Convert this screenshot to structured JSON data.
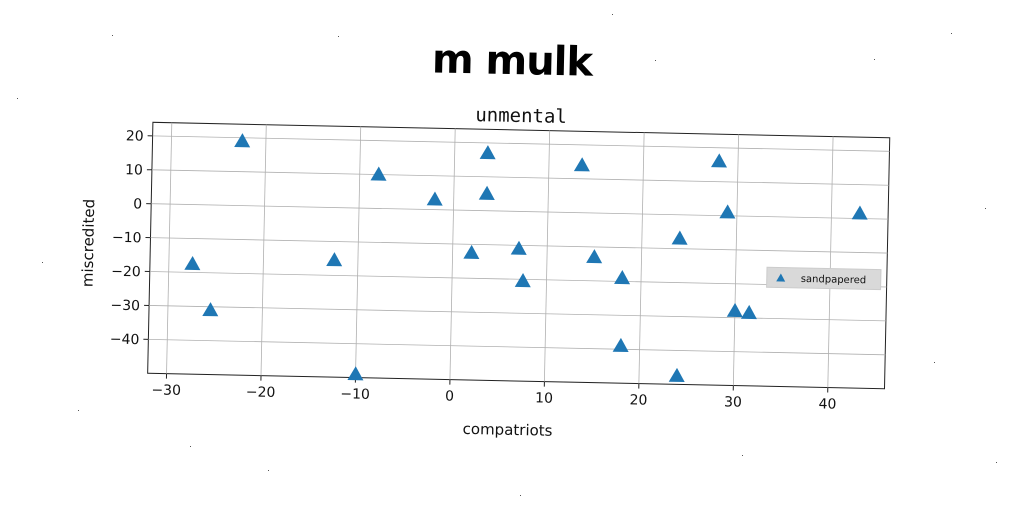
{
  "suptitle": "m mulk",
  "chart_data": {
    "type": "scatter",
    "title": "unmental",
    "xlabel": "compatriots",
    "ylabel": "miscredited",
    "xlim": [
      -32,
      46
    ],
    "ylim": [
      -50,
      24
    ],
    "xticks": [
      -30,
      -20,
      -10,
      0,
      10,
      20,
      30,
      40
    ],
    "xtick_labels": [
      "−30",
      "−20",
      "−10",
      "0",
      "10",
      "20",
      "30",
      "40"
    ],
    "yticks": [
      20,
      10,
      0,
      -10,
      -20,
      -30,
      -40
    ],
    "ytick_labels": [
      "20",
      "10",
      "0",
      "−10",
      "−20",
      "−30",
      "−40"
    ],
    "grid": true,
    "legend_position": "center-right",
    "marker": "triangle",
    "series": [
      {
        "name": "sandpapered",
        "color": "#1f77b4",
        "points": [
          {
            "x": -22.5,
            "y": 19
          },
          {
            "x": 3.5,
            "y": 17
          },
          {
            "x": 13.5,
            "y": 14
          },
          {
            "x": 28,
            "y": 16
          },
          {
            "x": -8,
            "y": 10
          },
          {
            "x": -2,
            "y": 3
          },
          {
            "x": 3.5,
            "y": 5
          },
          {
            "x": 29,
            "y": 1
          },
          {
            "x": 43,
            "y": 1.5
          },
          {
            "x": -27.5,
            "y": -17.5
          },
          {
            "x": -25.5,
            "y": -31
          },
          {
            "x": -12.5,
            "y": -15.5
          },
          {
            "x": 2,
            "y": -12.5
          },
          {
            "x": 7,
            "y": -11
          },
          {
            "x": 7.5,
            "y": -20.5
          },
          {
            "x": 15,
            "y": -13
          },
          {
            "x": 18,
            "y": -19
          },
          {
            "x": 24,
            "y": -7
          },
          {
            "x": 30,
            "y": -28
          },
          {
            "x": 31.5,
            "y": -28.5
          },
          {
            "x": 18,
            "y": -39
          },
          {
            "x": 24,
            "y": -47.5
          },
          {
            "x": -10,
            "y": -49
          }
        ]
      }
    ]
  }
}
